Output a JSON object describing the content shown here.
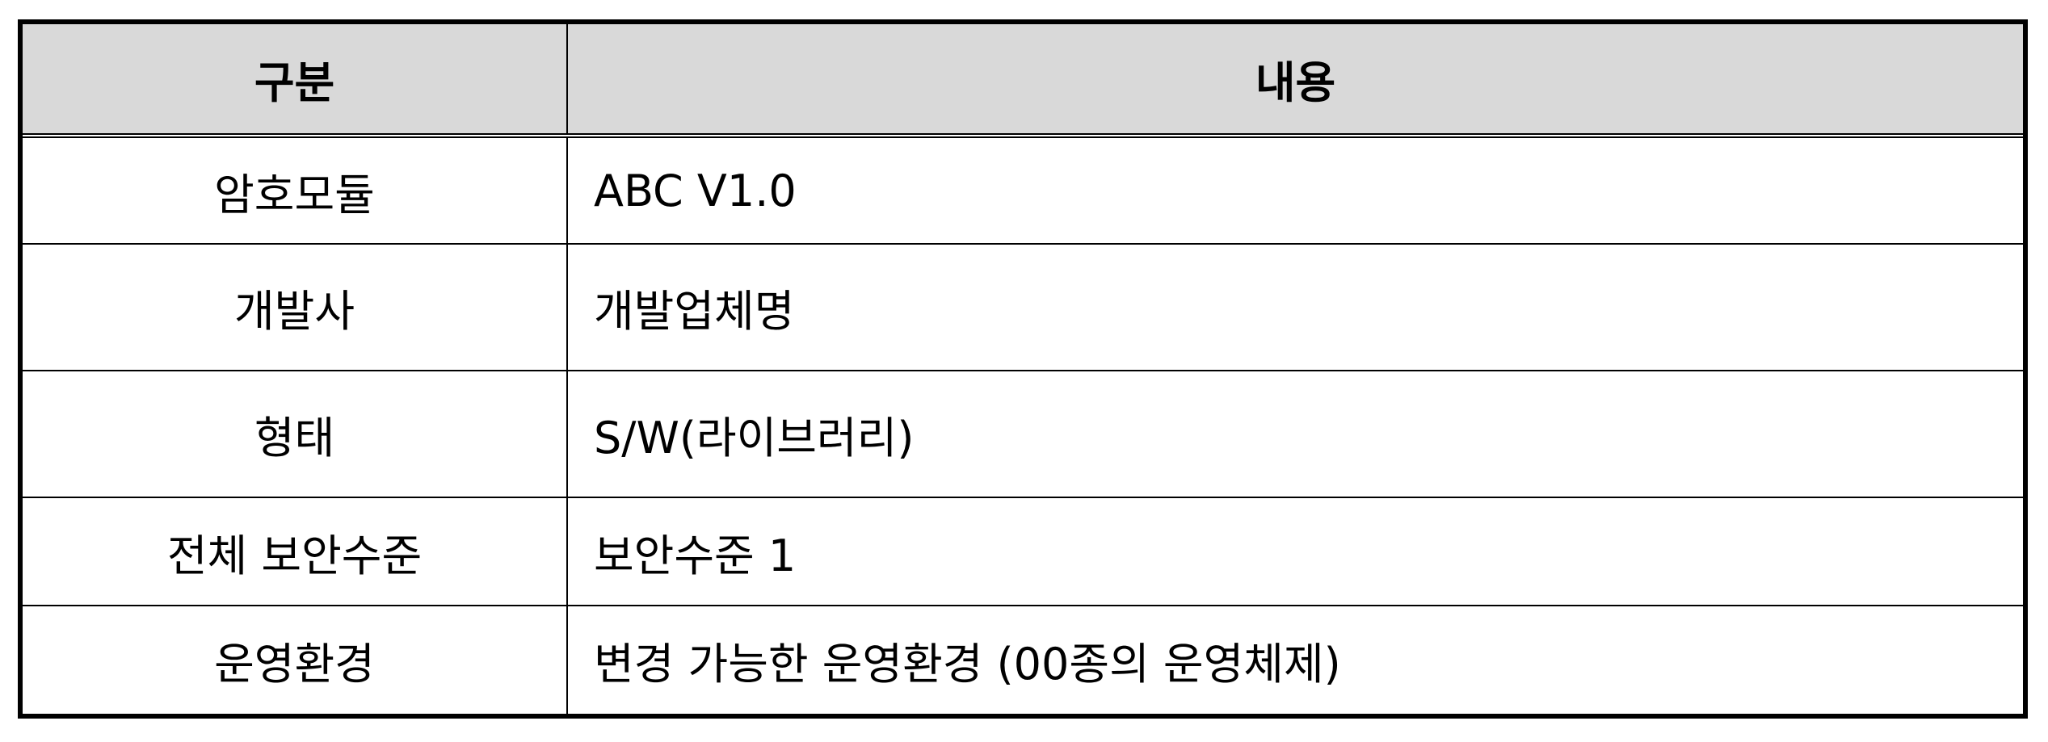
{
  "table": {
    "headers": {
      "category": "구분",
      "content": "내용"
    },
    "rows": [
      {
        "label": "암호모듈",
        "value": "ABC V1.0"
      },
      {
        "label": "개발사",
        "value": "개발업체명"
      },
      {
        "label": "형태",
        "value": "S/W(라이브러리)"
      },
      {
        "label": "전체 보안수준",
        "value": "보안수준 1"
      },
      {
        "label": "운영환경",
        "value": "변경 가능한 운영환경 (00종의 운영체제)"
      }
    ]
  },
  "colors": {
    "header_background": "#d9d9d9",
    "border": "#000000",
    "text": "#000000"
  }
}
